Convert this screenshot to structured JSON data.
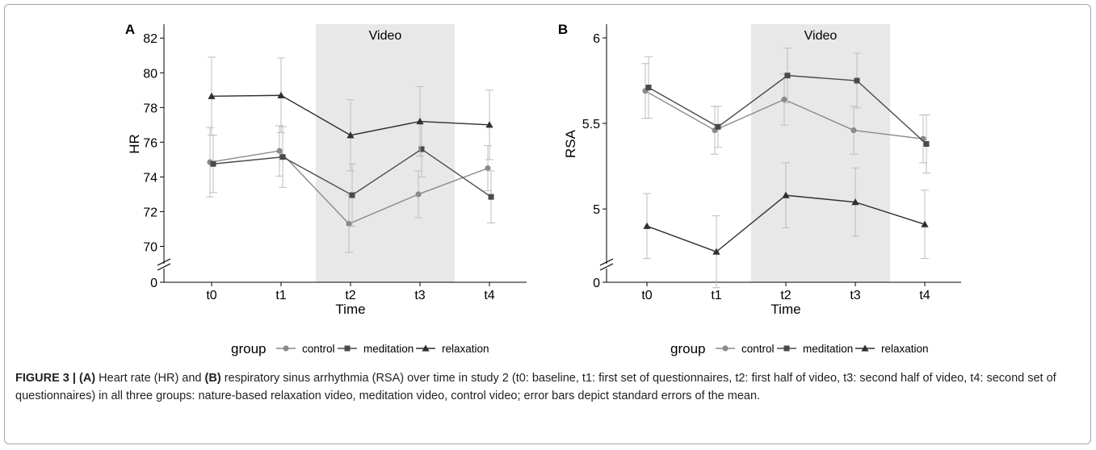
{
  "colors": {
    "control": "#8a8a8a",
    "meditation": "#4a4a4a",
    "relaxation": "#2f2f2f",
    "errorbar": "#bdbdbd",
    "shade": "#e8e8e8",
    "axis": "#000000"
  },
  "legend": {
    "title": "group",
    "items": [
      "control",
      "meditation",
      "relaxation"
    ]
  },
  "chart_data": [
    {
      "panel": "A",
      "type": "line",
      "title": "",
      "xlabel": "Time",
      "ylabel": "HR",
      "categories": [
        "t0",
        "t1",
        "t2",
        "t3",
        "t4"
      ],
      "ylim": [
        69,
        82.8
      ],
      "yticks": [
        70,
        72,
        74,
        76,
        78,
        80,
        82
      ],
      "axis_break_label": "0",
      "shaded_region": {
        "from": "t2",
        "to": "t3",
        "label": "Video"
      },
      "series": [
        {
          "name": "control",
          "marker": "circle",
          "values": [
            74.85,
            75.5,
            71.3,
            73.0,
            74.5
          ],
          "se": [
            2.0,
            1.45,
            1.65,
            1.35,
            1.3
          ]
        },
        {
          "name": "meditation",
          "marker": "square",
          "values": [
            74.75,
            75.15,
            72.95,
            75.6,
            72.85
          ],
          "se": [
            1.65,
            1.75,
            1.8,
            1.6,
            1.5
          ]
        },
        {
          "name": "relaxation",
          "marker": "triangle",
          "values": [
            78.65,
            78.7,
            76.4,
            77.2,
            77.0
          ],
          "se": [
            2.25,
            2.15,
            2.05,
            2.0,
            2.0
          ]
        }
      ]
    },
    {
      "panel": "B",
      "type": "line",
      "title": "",
      "xlabel": "Time",
      "ylabel": "RSA",
      "categories": [
        "t0",
        "t1",
        "t2",
        "t3",
        "t4"
      ],
      "ylim": [
        4.68,
        6.08
      ],
      "yticks": [
        5,
        5.5,
        6
      ],
      "axis_break_label": "0",
      "shaded_region": {
        "from": "t2",
        "to": "t3",
        "label": "Video"
      },
      "series": [
        {
          "name": "control",
          "marker": "circle",
          "values": [
            5.69,
            5.46,
            5.64,
            5.46,
            5.41
          ],
          "se": [
            0.16,
            0.14,
            0.15,
            0.14,
            0.14
          ]
        },
        {
          "name": "meditation",
          "marker": "square",
          "values": [
            5.71,
            5.48,
            5.78,
            5.75,
            5.38
          ],
          "se": [
            0.18,
            0.12,
            0.16,
            0.16,
            0.17
          ]
        },
        {
          "name": "relaxation",
          "marker": "triangle",
          "values": [
            4.9,
            4.75,
            5.08,
            5.04,
            4.91
          ],
          "se": [
            0.19,
            0.21,
            0.19,
            0.2,
            0.2
          ]
        }
      ]
    }
  ],
  "caption": {
    "label": "FIGURE 3 | ",
    "a_tag": "(A)",
    "a_text": " Heart rate (HR) and ",
    "b_tag": "(B)",
    "b_text": " respiratory sinus arrhythmia (RSA) over time in study 2 (t0: baseline, t1: first set of questionnaires, t2: first half of video, t3: second half of video, t4: second set of questionnaires) in all three groups: nature-based relaxation video, meditation video, control video; error bars depict standard errors of the mean."
  }
}
